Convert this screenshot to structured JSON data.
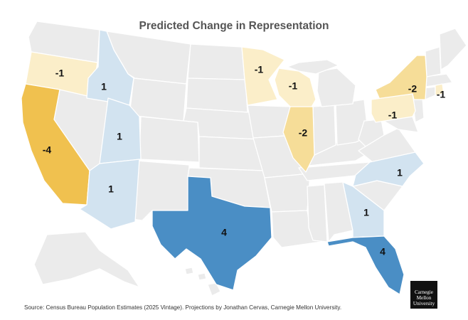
{
  "title": "Predicted Change in Representation",
  "source": "Source: Census Bureau Population Estimates (2025 Vintage). Projections by Jonathan Cervas, Carnegie Mellon University.",
  "logo": {
    "line1": "Carnegie",
    "line2": "Mellon",
    "line3": "University"
  },
  "colors": {
    "neutral": "#ebebeb",
    "plus1": "#d2e3f0",
    "plus4": "#4a8ec5",
    "minus1": "#fbeec9",
    "minus2": "#f6dd98",
    "minus4": "#f0c14f"
  },
  "states": [
    {
      "id": "OR",
      "change": -1,
      "label": "-1"
    },
    {
      "id": "ID",
      "change": 1,
      "label": "1"
    },
    {
      "id": "CA",
      "change": -4,
      "label": "-4"
    },
    {
      "id": "UT",
      "change": 1,
      "label": "1"
    },
    {
      "id": "AZ",
      "change": 1,
      "label": "1"
    },
    {
      "id": "TX",
      "change": 4,
      "label": "4"
    },
    {
      "id": "MN",
      "change": -1,
      "label": "-1"
    },
    {
      "id": "WI",
      "change": -1,
      "label": "-1"
    },
    {
      "id": "IL",
      "change": -2,
      "label": "-2"
    },
    {
      "id": "NY",
      "change": -2,
      "label": "-2"
    },
    {
      "id": "PA",
      "change": -1,
      "label": "-1"
    },
    {
      "id": "RI",
      "change": -1,
      "label": "-1"
    },
    {
      "id": "NC",
      "change": 1,
      "label": "1"
    },
    {
      "id": "GA",
      "change": 1,
      "label": "1"
    },
    {
      "id": "FL",
      "change": 4,
      "label": "4"
    }
  ]
}
